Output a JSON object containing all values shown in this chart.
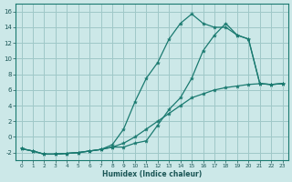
{
  "xlabel": "Humidex (Indice chaleur)",
  "bg_color": "#cce8e8",
  "line_color": "#1a7a70",
  "grid_color": "#9fc8c8",
  "x_values": [
    0,
    1,
    2,
    3,
    4,
    5,
    6,
    7,
    8,
    9,
    10,
    11,
    12,
    13,
    14,
    15,
    16,
    17,
    18,
    19,
    20,
    21,
    22,
    23
  ],
  "line_diag": [
    -1.5,
    -1.8,
    -2.2,
    -2.2,
    -2.1,
    -2.0,
    -1.8,
    -1.6,
    -1.3,
    -0.8,
    0.0,
    1.0,
    2.0,
    3.0,
    4.0,
    5.0,
    5.5,
    6.0,
    6.3,
    6.5,
    6.7,
    6.8,
    6.7,
    6.8
  ],
  "line_mid": [
    -1.5,
    -1.8,
    -2.2,
    -2.2,
    -2.1,
    -2.0,
    -1.8,
    -1.6,
    -1.3,
    -1.3,
    -0.8,
    -0.5,
    1.5,
    3.5,
    5.0,
    7.5,
    11.0,
    13.0,
    14.5,
    13.0,
    12.5,
    6.8,
    6.7,
    6.8
  ],
  "line_top": [
    -1.5,
    -1.8,
    -2.2,
    -2.2,
    -2.1,
    -2.0,
    -1.8,
    -1.6,
    -1.0,
    1.0,
    4.5,
    7.5,
    9.5,
    12.5,
    14.5,
    15.7,
    14.5,
    14.0,
    14.0,
    13.0,
    12.5,
    6.8,
    6.7,
    6.8
  ],
  "ylim": [
    -3,
    17
  ],
  "xlim": [
    -0.5,
    23.5
  ],
  "yticks": [
    -2,
    0,
    2,
    4,
    6,
    8,
    10,
    12,
    14,
    16
  ],
  "xticks": [
    0,
    1,
    2,
    3,
    4,
    5,
    6,
    7,
    8,
    9,
    10,
    11,
    12,
    13,
    14,
    15,
    16,
    17,
    18,
    19,
    20,
    21,
    22,
    23
  ]
}
